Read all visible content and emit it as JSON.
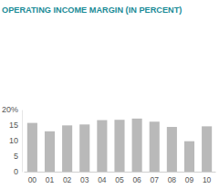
{
  "chart_data": {
    "type": "bar",
    "title": "OPERATING INCOME MARGIN (IN PERCENT)",
    "categories": [
      "00",
      "01",
      "02",
      "03",
      "04",
      "05",
      "06",
      "07",
      "08",
      "09",
      "10"
    ],
    "values": [
      15.7,
      13.0,
      14.9,
      15.2,
      16.6,
      16.7,
      17.1,
      16.1,
      14.4,
      9.8,
      14.6
    ],
    "color": "#b9b9b9",
    "ylim": [
      0,
      20
    ],
    "yticks": [
      0,
      5,
      10,
      15,
      {
        "value": 20,
        "label": "20%"
      }
    ],
    "grid": false
  }
}
